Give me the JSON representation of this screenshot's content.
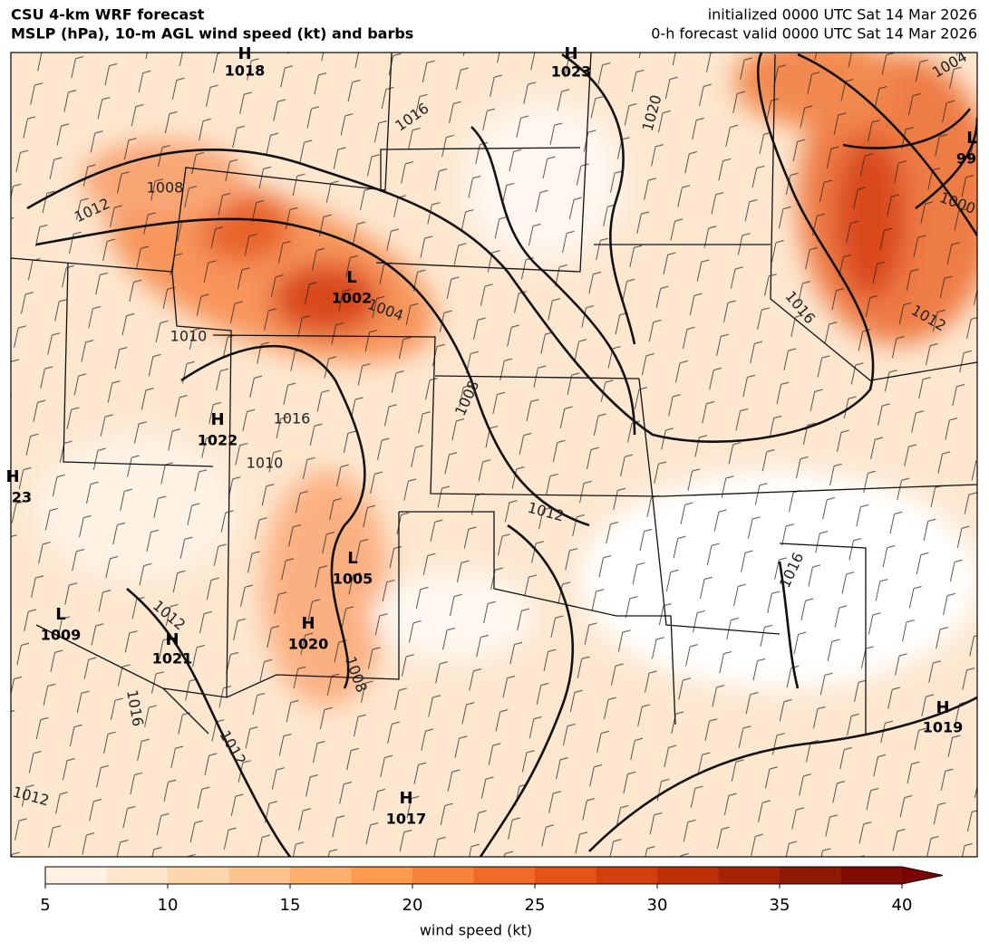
{
  "header": {
    "title_lines": [
      "CSU 4-km WRF forecast",
      "MSLP (hPa), 10-m AGL wind speed (kt) and barbs"
    ],
    "info_lines": [
      "initialized 0000 UTC Sat 14 Mar 2026",
      "0-h forecast valid 0000 UTC Sat 14 Mar 2026"
    ]
  },
  "map": {
    "centers": [
      {
        "symbol": "H",
        "value": "1018"
      },
      {
        "symbol": "H",
        "value": "1023"
      },
      {
        "symbol": "L",
        "value": "1002"
      },
      {
        "symbol": "H",
        "value": "1022"
      },
      {
        "symbol": "L",
        "value": "1005"
      },
      {
        "symbol": "L",
        "value": "1009"
      },
      {
        "symbol": "H",
        "value": "1021"
      },
      {
        "symbol": "H",
        "value": "1020"
      },
      {
        "symbol": "H",
        "value": "1017"
      },
      {
        "symbol": "H",
        "value": "1019"
      },
      {
        "symbol": "L",
        "value": "99"
      },
      {
        "symbol": "H",
        "value": "23"
      }
    ],
    "contour_labels": [
      "1016",
      "1020",
      "1008",
      "1012",
      "1016",
      "1004",
      "1010",
      "1008",
      "1016",
      "1010",
      "1012",
      "1012",
      "1004",
      "1000",
      "1012",
      "1008",
      "1012",
      "1016",
      "1012",
      "1016"
    ]
  },
  "colorbar": {
    "lim": [
      5,
      40
    ],
    "ticks": [
      5,
      10,
      15,
      20,
      25,
      30,
      35,
      40
    ],
    "label": "wind speed (kt)",
    "colors": [
      "#fff2e4",
      "#fee6cc",
      "#fdd6ac",
      "#fdc48e",
      "#fdb06e",
      "#fd9a50",
      "#f8823a",
      "#f06a28",
      "#e45318",
      "#d3400e",
      "#bd3008",
      "#a62406",
      "#8f1a04",
      "#7f0c02"
    ],
    "extend_color": "#7f0000"
  }
}
